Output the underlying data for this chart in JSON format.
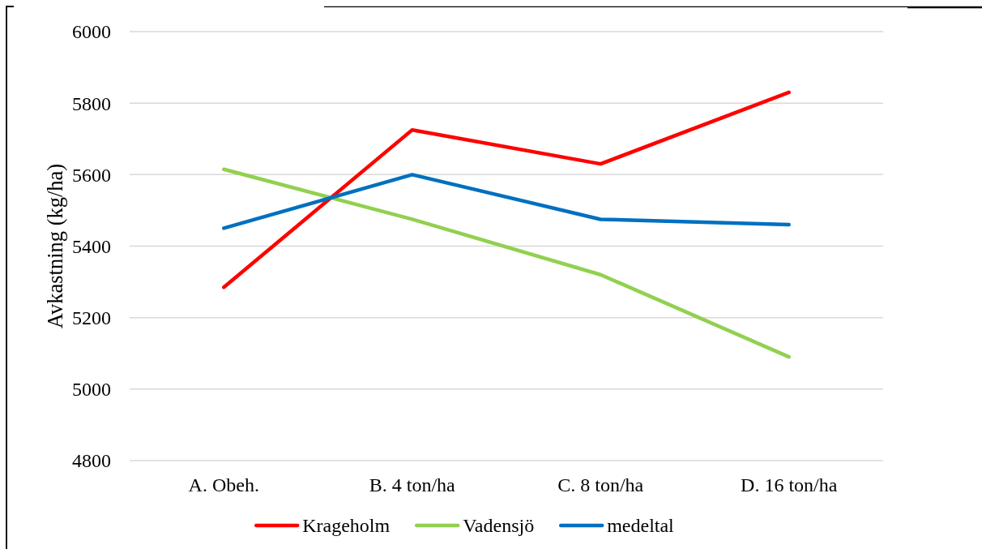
{
  "chart_data": {
    "type": "line",
    "ylabel": "Avkastning (kg/ha)",
    "categories": [
      "A. Obeh.",
      "B. 4 ton/ha",
      "C. 8 ton/ha",
      "D. 16 ton/ha"
    ],
    "series": [
      {
        "name": "Krageholm",
        "color": "#ff0000",
        "values": [
          5285,
          5725,
          5630,
          5830
        ]
      },
      {
        "name": "Vadensjö",
        "color": "#92d050",
        "values": [
          5615,
          5475,
          5320,
          5090
        ]
      },
      {
        "name": "medeltal",
        "color": "#0070c0",
        "values": [
          5450,
          5600,
          5475,
          5460
        ]
      }
    ],
    "ylim": [
      4800,
      6000
    ],
    "yticks": [
      4800,
      5000,
      5200,
      5400,
      5600,
      5800,
      6000
    ],
    "grid": "y",
    "legend": "bottom",
    "line_style": "solid"
  }
}
